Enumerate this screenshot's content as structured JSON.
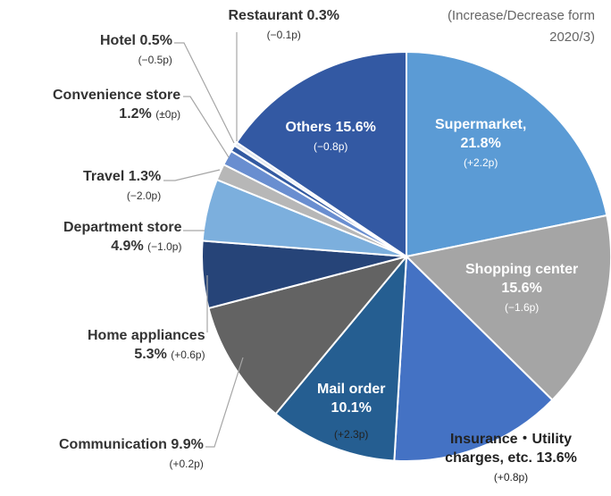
{
  "chart_data": {
    "type": "pie",
    "note": "(Increase/Decrease form 2020/3)",
    "categories": [
      "Supermarket,",
      "Shopping center",
      "Insurance・Utility charges, etc.",
      "Mail order",
      "Communication",
      "Home appliances",
      "Department store",
      "Travel",
      "Convenience store",
      "Hotel",
      "Restaurant",
      "Others"
    ],
    "values": [
      21.8,
      15.6,
      13.6,
      10.1,
      9.9,
      5.3,
      4.9,
      1.3,
      1.2,
      0.5,
      0.3,
      15.6
    ],
    "value_labels": [
      "21.8%",
      "15.6%",
      "13.6%",
      "10.1%",
      "9.9%",
      "5.3%",
      "4.9%",
      "1.3%",
      "1.2%",
      "0.5%",
      "0.3%",
      "15.6%"
    ],
    "changes": [
      "(+2.2p)",
      "(−1.6p)",
      "(+0.8p)",
      "(+2.3p)",
      "(+0.2p)",
      "(+0.6p)",
      "(−1.0p)",
      "(−2.0p)",
      "(±0p)",
      "(−0.5p)",
      "(−0.1p)",
      "(−0.8p)"
    ],
    "colors": [
      "#5b9bd5",
      "#a5a5a5",
      "#4472c4",
      "#255e91",
      "#636363",
      "#264478",
      "#7cafdd",
      "#b7b7b7",
      "#698ed0",
      "#335aa1",
      "#dfe6f0",
      "#3359a3"
    ]
  }
}
